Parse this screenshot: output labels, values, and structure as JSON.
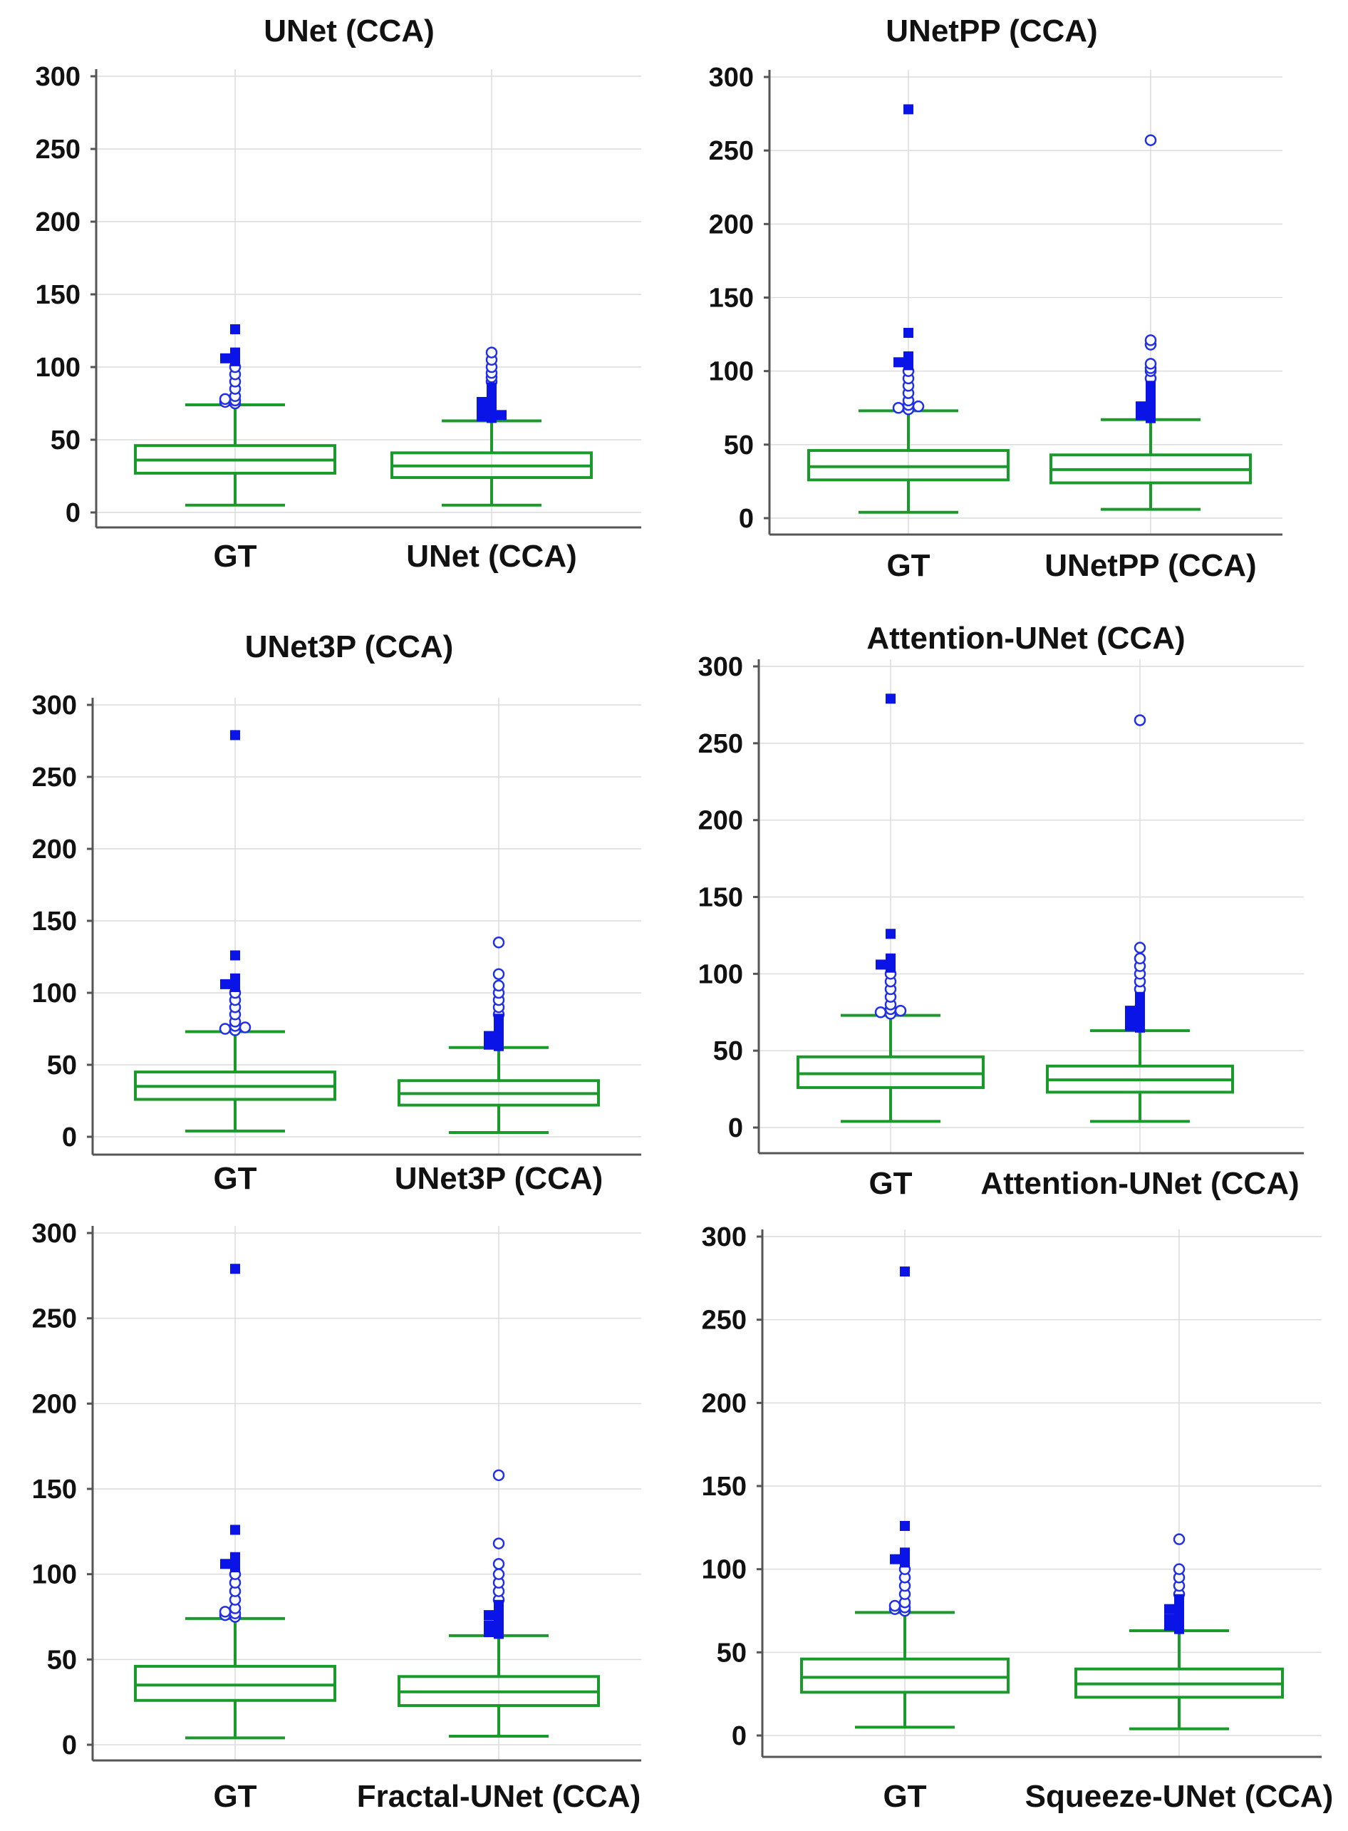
{
  "chart_data": [
    {
      "type": "box",
      "title": "UNet  (CCA)",
      "categories": [
        "GT",
        "UNet (CCA)"
      ],
      "ylim": [
        0,
        300
      ],
      "yticks": [
        0,
        50,
        100,
        150,
        200,
        250,
        300
      ],
      "boxes": [
        {
          "name": "GT",
          "min": 5,
          "q1": 27,
          "median": 36,
          "q3": 46,
          "max": 74,
          "near_outliers": [
            75,
            76,
            77,
            78,
            80,
            85,
            90,
            95,
            100
          ],
          "far_outliers": [
            104,
            106,
            108,
            110,
            126
          ]
        },
        {
          "name": "UNet (CCA)",
          "min": 5,
          "q1": 24,
          "median": 32,
          "q3": 41,
          "max": 63,
          "near_outliers": [
            90,
            93,
            96,
            100,
            105,
            110
          ],
          "far_outliers": [
            65,
            66,
            67,
            68,
            70,
            72,
            74,
            76,
            78,
            80,
            83,
            86
          ]
        }
      ]
    },
    {
      "type": "box",
      "title": "UNetPP  (CCA)",
      "categories": [
        "GT",
        "UNetPP (CCA)"
      ],
      "ylim": [
        0,
        300
      ],
      "yticks": [
        0,
        50,
        100,
        150,
        200,
        250,
        300
      ],
      "boxes": [
        {
          "name": "GT",
          "min": 4,
          "q1": 26,
          "median": 35,
          "q3": 46,
          "max": 73,
          "near_outliers": [
            74,
            75,
            76,
            77,
            80,
            85,
            90,
            95,
            100
          ],
          "far_outliers": [
            104,
            106,
            108,
            110,
            126,
            278
          ]
        },
        {
          "name": "UNetPP (CCA)",
          "min": 6,
          "q1": 24,
          "median": 33,
          "q3": 43,
          "max": 67,
          "near_outliers": [
            95,
            100,
            102,
            105,
            118,
            121,
            257
          ],
          "far_outliers": [
            68,
            70,
            72,
            74,
            76,
            78,
            82,
            86,
            90
          ]
        }
      ]
    },
    {
      "type": "box",
      "title": "UNet3P  (CCA)",
      "categories": [
        "GT",
        "UNet3P (CCA)"
      ],
      "ylim": [
        0,
        300
      ],
      "yticks": [
        0,
        50,
        100,
        150,
        200,
        250,
        300
      ],
      "boxes": [
        {
          "name": "GT",
          "min": 4,
          "q1": 26,
          "median": 35,
          "q3": 45,
          "max": 73,
          "near_outliers": [
            74,
            75,
            76,
            77,
            80,
            85,
            90,
            95,
            100
          ],
          "far_outliers": [
            104,
            106,
            108,
            110,
            126,
            279
          ]
        },
        {
          "name": "UNet3P (CCA)",
          "min": 3,
          "q1": 22,
          "median": 30,
          "q3": 39,
          "max": 62,
          "near_outliers": [
            85,
            90,
            95,
            100,
            105,
            113,
            135
          ],
          "far_outliers": [
            63,
            64,
            65,
            66,
            68,
            70,
            72,
            75,
            78,
            82
          ]
        }
      ]
    },
    {
      "type": "box",
      "title": "Attention-UNet  (CCA)",
      "categories": [
        "GT",
        "Attention-UNet (CCA)"
      ],
      "ylim": [
        0,
        300
      ],
      "yticks": [
        0,
        50,
        100,
        150,
        200,
        250,
        300
      ],
      "boxes": [
        {
          "name": "GT",
          "min": 4,
          "q1": 26,
          "median": 35,
          "q3": 46,
          "max": 73,
          "near_outliers": [
            74,
            75,
            76,
            77,
            80,
            85,
            90,
            95,
            100
          ],
          "far_outliers": [
            104,
            106,
            108,
            110,
            126,
            279
          ]
        },
        {
          "name": "Attention-UNet (CCA)",
          "min": 4,
          "q1": 23,
          "median": 31,
          "q3": 40,
          "max": 63,
          "near_outliers": [
            90,
            95,
            100,
            105,
            110,
            117,
            265
          ],
          "far_outliers": [
            65,
            66,
            68,
            70,
            72,
            74,
            76,
            80,
            85
          ]
        }
      ]
    },
    {
      "type": "box",
      "title": "",
      "categories": [
        "GT",
        "Fractal-UNet (CCA)"
      ],
      "ylim": [
        0,
        300
      ],
      "yticks": [
        0,
        50,
        100,
        150,
        200,
        250,
        300
      ],
      "boxes": [
        {
          "name": "GT",
          "min": 4,
          "q1": 26,
          "median": 35,
          "q3": 46,
          "max": 74,
          "near_outliers": [
            75,
            76,
            77,
            78,
            80,
            85,
            90,
            95,
            100
          ],
          "far_outliers": [
            104,
            106,
            108,
            110,
            126,
            279
          ]
        },
        {
          "name": "Fractal-UNet (CCA)",
          "min": 5,
          "q1": 23,
          "median": 31,
          "q3": 40,
          "max": 64,
          "near_outliers": [
            85,
            90,
            95,
            100,
            106,
            118,
            158
          ],
          "far_outliers": [
            65,
            66,
            68,
            70,
            72,
            74,
            76,
            78,
            82
          ]
        }
      ]
    },
    {
      "type": "box",
      "title": "",
      "categories": [
        "GT",
        "Squeeze-UNet (CCA)"
      ],
      "ylim": [
        0,
        300
      ],
      "yticks": [
        0,
        50,
        100,
        150,
        200,
        250,
        300
      ],
      "boxes": [
        {
          "name": "GT",
          "min": 5,
          "q1": 26,
          "median": 35,
          "q3": 46,
          "max": 74,
          "near_outliers": [
            75,
            76,
            77,
            78,
            80,
            85,
            90,
            95,
            100
          ],
          "far_outliers": [
            104,
            106,
            108,
            110,
            126,
            279
          ]
        },
        {
          "name": "Squeeze-UNet (CCA)",
          "min": 4,
          "q1": 23,
          "median": 31,
          "q3": 40,
          "max": 63,
          "near_outliers": [
            85,
            90,
            95,
            100,
            118
          ],
          "far_outliers": [
            64,
            65,
            66,
            68,
            70,
            72,
            74,
            76,
            78,
            82
          ]
        }
      ]
    }
  ]
}
